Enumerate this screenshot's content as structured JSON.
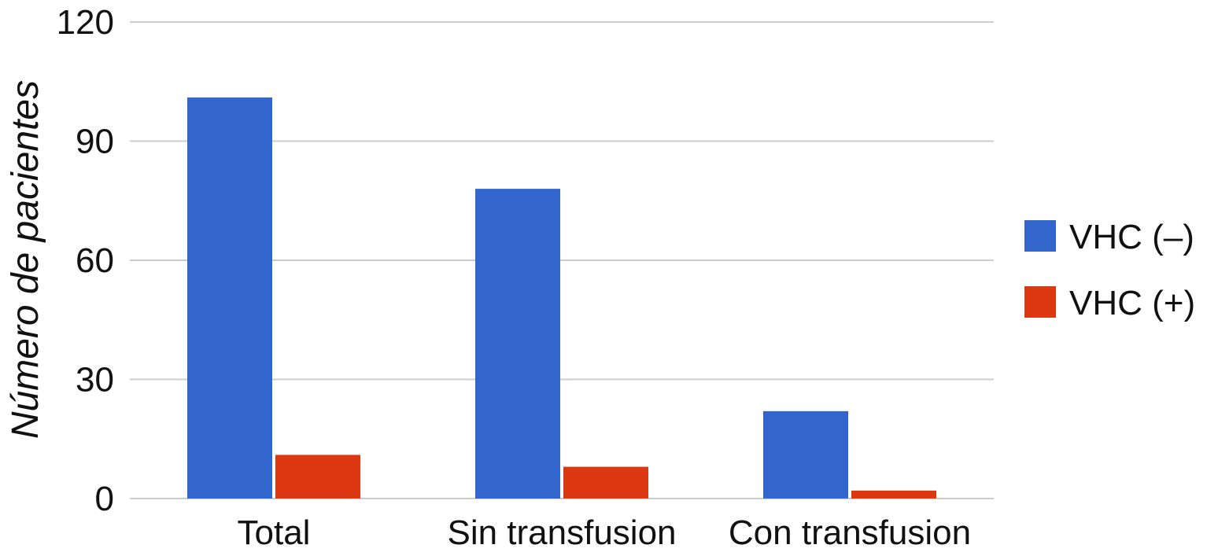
{
  "chart_data": {
    "type": "bar",
    "title": "",
    "xlabel": "",
    "ylabel": "Número de pacientes",
    "ylim": [
      0,
      120
    ],
    "yticks": [
      0,
      30,
      60,
      90,
      120
    ],
    "grid": true,
    "legend_position": "right",
    "categories": [
      "Total",
      "Sin transfusion",
      "Con transfusion"
    ],
    "series": [
      {
        "name": "VHC (–)",
        "color": "#3366cc",
        "values": [
          101,
          78,
          22
        ]
      },
      {
        "name": "VHC (+)",
        "color": "#dc3912",
        "values": [
          11,
          8,
          2
        ]
      }
    ]
  }
}
